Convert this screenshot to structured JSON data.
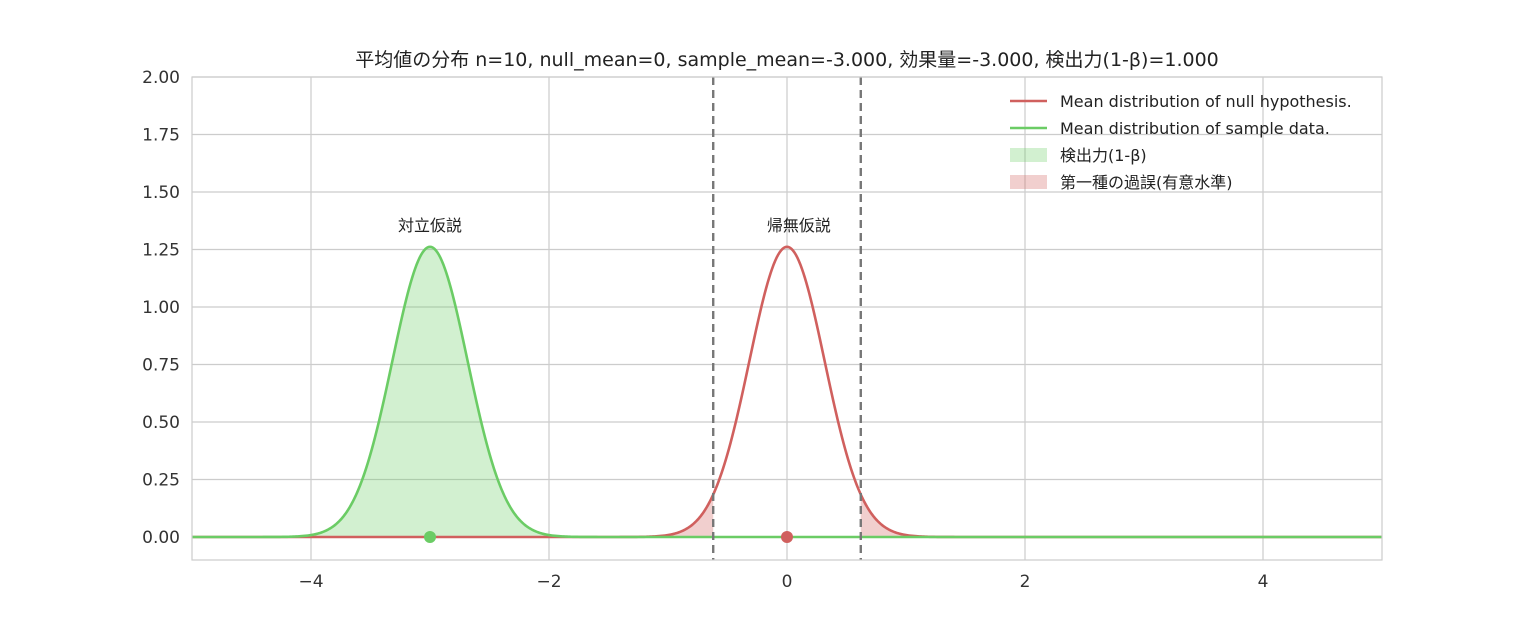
{
  "chart_data": {
    "type": "line",
    "title": "平均値の分布 n=10, null_mean=0, sample_mean=-3.000, 効果量=-3.000, 検出力(1-β)=1.000",
    "xlabel": "",
    "ylabel": "",
    "xlim": [
      -5,
      5
    ],
    "ylim": [
      -0.1,
      2.0
    ],
    "x_ticks": [
      -4,
      -2,
      0,
      2,
      4
    ],
    "x_tick_labels": [
      "−4",
      "−2",
      "0",
      "2",
      "4"
    ],
    "y_ticks": [
      0.0,
      0.25,
      0.5,
      0.75,
      1.0,
      1.25,
      1.5,
      1.75,
      2.0
    ],
    "y_tick_labels": [
      "0.00",
      "0.25",
      "0.50",
      "0.75",
      "1.00",
      "1.25",
      "1.50",
      "1.75",
      "2.00"
    ],
    "grid": true,
    "legend_placement": "top-right",
    "series": [
      {
        "name": "Mean distribution of null hypothesis.",
        "kind": "normal-pdf",
        "mean": 0.0,
        "sd": 0.3162,
        "color": "#d0605e"
      },
      {
        "name": "Mean distribution of sample data.",
        "kind": "normal-pdf",
        "mean": -3.0,
        "sd": 0.3162,
        "color": "#6bcc65"
      }
    ],
    "shaded_regions": [
      {
        "name": "検出力(1-β)",
        "under_series": 1,
        "from": -5.0,
        "to": -0.62,
        "color": "#6bcc65",
        "opacity": 0.3
      },
      {
        "name": "第一種の過誤(有意水準)",
        "under_series": 0,
        "from": -5.0,
        "to": -0.62,
        "color": "#d0605e",
        "opacity": 0.3
      },
      {
        "name": "第一種の過誤(有意水準)",
        "under_series": 0,
        "from": 0.62,
        "to": 5.0,
        "color": "#d0605e",
        "opacity": 0.3
      }
    ],
    "vlines": [
      {
        "x": -0.62,
        "style": "dashed",
        "color": "#777777"
      },
      {
        "x": 0.62,
        "style": "dashed",
        "color": "#777777"
      }
    ],
    "points": [
      {
        "x": -3.0,
        "y": 0.0,
        "color": "#6bcc65"
      },
      {
        "x": 0.0,
        "y": 0.0,
        "color": "#d0605e"
      }
    ],
    "annotations": [
      {
        "text": "対立仮説",
        "x": -3.0,
        "y": 1.33
      },
      {
        "text": "帰無仮説",
        "x": 0.1,
        "y": 1.33
      }
    ],
    "legend": [
      {
        "label": "Mean distribution of null hypothesis.",
        "kind": "line",
        "color": "#d0605e"
      },
      {
        "label": "Mean distribution of sample data.",
        "kind": "line",
        "color": "#6bcc65"
      },
      {
        "label": "検出力(1-β)",
        "kind": "patch",
        "color": "#6bcc65"
      },
      {
        "label": "第一種の過誤(有意水準)",
        "kind": "patch",
        "color": "#d0605e"
      }
    ]
  }
}
